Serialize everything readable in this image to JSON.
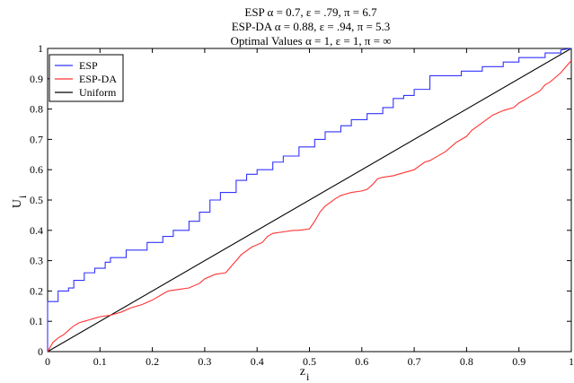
{
  "chart_data": {
    "type": "line",
    "title_lines": [
      "ESP    α = 0.7,  ε = .79, π = 6.7",
      "ESP-DA  α = 0.88,  ε = .94, π = 5.3",
      "Optimal Values  α = 1,  ε = 1, π = ∞"
    ],
    "xlabel": "z",
    "xlabel_sub": "i",
    "ylabel": "U",
    "ylabel_sub": "i",
    "xlim": [
      0,
      1
    ],
    "ylim": [
      0,
      1
    ],
    "xticks": [
      0,
      0.1,
      0.2,
      0.3,
      0.4,
      0.5,
      0.6,
      0.7,
      0.8,
      0.9,
      1
    ],
    "yticks": [
      0,
      0.1,
      0.2,
      0.3,
      0.4,
      0.5,
      0.6,
      0.7,
      0.8,
      0.9,
      1
    ],
    "xtick_labels": [
      "0",
      "0.1",
      "0.2",
      "0.3",
      "0.4",
      "0.5",
      "0.6",
      "0.7",
      "0.8",
      "0.9",
      "1"
    ],
    "ytick_labels": [
      "0",
      "0.1",
      "0.2",
      "0.3",
      "0.4",
      "0.5",
      "0.6",
      "0.7",
      "0.8",
      "0.9",
      "1"
    ],
    "grid": false,
    "legend_position": "top-left",
    "series": [
      {
        "name": "ESP",
        "color": "#3333ff",
        "x": [
          0,
          0,
          0.02,
          0.02,
          0.04,
          0.04,
          0.05,
          0.05,
          0.07,
          0.07,
          0.09,
          0.09,
          0.11,
          0.11,
          0.12,
          0.12,
          0.15,
          0.15,
          0.19,
          0.19,
          0.22,
          0.22,
          0.24,
          0.24,
          0.27,
          0.27,
          0.29,
          0.29,
          0.31,
          0.31,
          0.33,
          0.33,
          0.36,
          0.36,
          0.38,
          0.38,
          0.4,
          0.4,
          0.43,
          0.43,
          0.45,
          0.45,
          0.48,
          0.48,
          0.51,
          0.51,
          0.53,
          0.53,
          0.56,
          0.56,
          0.58,
          0.58,
          0.61,
          0.61,
          0.64,
          0.64,
          0.66,
          0.66,
          0.68,
          0.68,
          0.7,
          0.7,
          0.73,
          0.73,
          0.79,
          0.79,
          0.83,
          0.83,
          0.87,
          0.87,
          0.9,
          0.9,
          0.95,
          0.95,
          0.98,
          0.98,
          1
        ],
        "y": [
          0,
          0.165,
          0.165,
          0.2,
          0.2,
          0.21,
          0.21,
          0.235,
          0.235,
          0.26,
          0.26,
          0.275,
          0.275,
          0.295,
          0.295,
          0.31,
          0.31,
          0.335,
          0.335,
          0.36,
          0.36,
          0.38,
          0.38,
          0.4,
          0.4,
          0.43,
          0.43,
          0.46,
          0.46,
          0.5,
          0.5,
          0.525,
          0.525,
          0.565,
          0.565,
          0.585,
          0.585,
          0.6,
          0.6,
          0.625,
          0.625,
          0.645,
          0.645,
          0.675,
          0.675,
          0.7,
          0.7,
          0.725,
          0.725,
          0.745,
          0.745,
          0.765,
          0.765,
          0.785,
          0.785,
          0.805,
          0.805,
          0.835,
          0.835,
          0.845,
          0.845,
          0.865,
          0.865,
          0.91,
          0.91,
          0.925,
          0.925,
          0.94,
          0.94,
          0.955,
          0.955,
          0.97,
          0.97,
          0.985,
          0.985,
          0.995,
          1
        ]
      },
      {
        "name": "ESP-DA",
        "color": "#ff3333",
        "x": [
          0,
          0.005,
          0.01,
          0.02,
          0.03,
          0.04,
          0.05,
          0.06,
          0.07,
          0.08,
          0.09,
          0.1,
          0.12,
          0.14,
          0.16,
          0.18,
          0.2,
          0.22,
          0.23,
          0.25,
          0.27,
          0.29,
          0.3,
          0.32,
          0.34,
          0.35,
          0.36,
          0.37,
          0.39,
          0.41,
          0.42,
          0.43,
          0.45,
          0.47,
          0.48,
          0.5,
          0.51,
          0.52,
          0.53,
          0.55,
          0.56,
          0.57,
          0.58,
          0.6,
          0.61,
          0.62,
          0.63,
          0.64,
          0.66,
          0.68,
          0.7,
          0.72,
          0.73,
          0.74,
          0.76,
          0.78,
          0.8,
          0.81,
          0.83,
          0.85,
          0.87,
          0.89,
          0.9,
          0.92,
          0.94,
          0.95,
          0.96,
          0.97,
          0.98,
          0.99,
          1
        ],
        "y": [
          0,
          0.015,
          0.03,
          0.045,
          0.055,
          0.07,
          0.085,
          0.095,
          0.1,
          0.105,
          0.11,
          0.115,
          0.12,
          0.13,
          0.145,
          0.155,
          0.17,
          0.19,
          0.2,
          0.205,
          0.21,
          0.225,
          0.24,
          0.255,
          0.26,
          0.28,
          0.3,
          0.32,
          0.345,
          0.36,
          0.38,
          0.39,
          0.395,
          0.4,
          0.4,
          0.405,
          0.43,
          0.46,
          0.48,
          0.505,
          0.515,
          0.52,
          0.525,
          0.53,
          0.535,
          0.55,
          0.57,
          0.575,
          0.58,
          0.59,
          0.6,
          0.625,
          0.63,
          0.64,
          0.66,
          0.69,
          0.71,
          0.73,
          0.755,
          0.78,
          0.795,
          0.805,
          0.82,
          0.84,
          0.86,
          0.88,
          0.89,
          0.905,
          0.92,
          0.94,
          0.96
        ]
      },
      {
        "name": "Uniform",
        "color": "#000000",
        "x": [
          0,
          1
        ],
        "y": [
          0,
          1
        ]
      }
    ]
  }
}
